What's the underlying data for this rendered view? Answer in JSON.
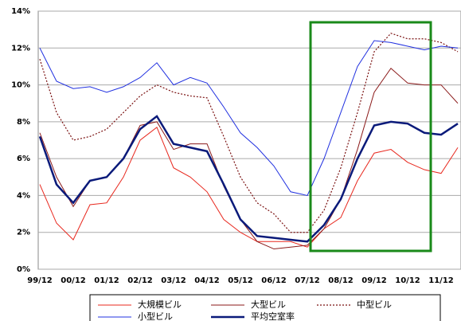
{
  "chart_data": {
    "type": "line",
    "categories": [
      "99/12",
      null,
      "00/12",
      null,
      "01/12",
      null,
      "02/12",
      null,
      "03/12",
      null,
      "04/12",
      null,
      "05/12",
      null,
      "06/12",
      null,
      "07/12",
      null,
      "08/12",
      null,
      "09/12",
      null,
      "10/12",
      null,
      "11/12",
      null
    ],
    "series": [
      {
        "name": "大規模ビル",
        "color": "#e8281e",
        "width": 1,
        "dash": "solid",
        "values": [
          4.6,
          2.5,
          1.6,
          3.5,
          3.6,
          5.0,
          7.0,
          7.7,
          5.5,
          5.0,
          4.2,
          2.7,
          2.0,
          1.5,
          1.5,
          1.5,
          1.2,
          2.2,
          2.8,
          4.8,
          6.3,
          6.5,
          5.8,
          5.4,
          5.2,
          6.6
        ]
      },
      {
        "name": "大型ビル",
        "color": "#8b1a1a",
        "width": 1,
        "dash": "solid",
        "values": [
          7.4,
          5.0,
          3.4,
          4.8,
          5.0,
          6.0,
          7.8,
          8.0,
          6.5,
          6.8,
          6.8,
          4.5,
          2.7,
          1.5,
          1.1,
          1.2,
          1.3,
          2.2,
          3.8,
          6.5,
          9.6,
          10.9,
          10.1,
          10.0,
          10.0,
          9.0
        ]
      },
      {
        "name": "中型ビル",
        "color": "#7a1010",
        "width": 1.2,
        "dash": "dot",
        "values": [
          11.4,
          8.5,
          7.0,
          7.2,
          7.6,
          8.5,
          9.4,
          10.0,
          9.6,
          9.4,
          9.3,
          7.2,
          5.0,
          3.6,
          3.0,
          2.0,
          2.0,
          3.2,
          5.5,
          8.5,
          11.8,
          12.8,
          12.5,
          12.5,
          12.3,
          11.8
        ]
      },
      {
        "name": "小型ビル",
        "color": "#2030e0",
        "width": 1,
        "dash": "solid",
        "values": [
          12.0,
          10.2,
          9.8,
          9.9,
          9.6,
          9.9,
          10.4,
          11.2,
          10.0,
          10.4,
          10.1,
          8.8,
          7.4,
          6.6,
          5.6,
          4.2,
          4.0,
          6.0,
          8.5,
          11.0,
          12.4,
          12.3,
          12.1,
          11.9,
          12.1,
          12.0
        ]
      },
      {
        "name": "平均空室率",
        "color": "#0a1a7a",
        "width": 2.5,
        "dash": "solid",
        "values": [
          7.2,
          4.6,
          3.6,
          4.8,
          5.0,
          6.0,
          7.6,
          8.3,
          6.8,
          6.6,
          6.4,
          4.6,
          2.7,
          1.8,
          1.7,
          1.6,
          1.5,
          2.4,
          3.8,
          6.0,
          7.8,
          8.0,
          7.9,
          7.4,
          7.3,
          7.9
        ]
      }
    ],
    "ylim": [
      0,
      14
    ],
    "yticks": [
      {
        "value": 0,
        "label": "0%"
      },
      {
        "value": 2,
        "label": "2%"
      },
      {
        "value": 4,
        "label": "4%"
      },
      {
        "value": 6,
        "label": "6%"
      },
      {
        "value": 8,
        "label": "8%"
      },
      {
        "value": 10,
        "label": "10%"
      },
      {
        "value": 12,
        "label": "12%"
      },
      {
        "value": 14,
        "label": "14%"
      }
    ],
    "grid": true
  }
}
